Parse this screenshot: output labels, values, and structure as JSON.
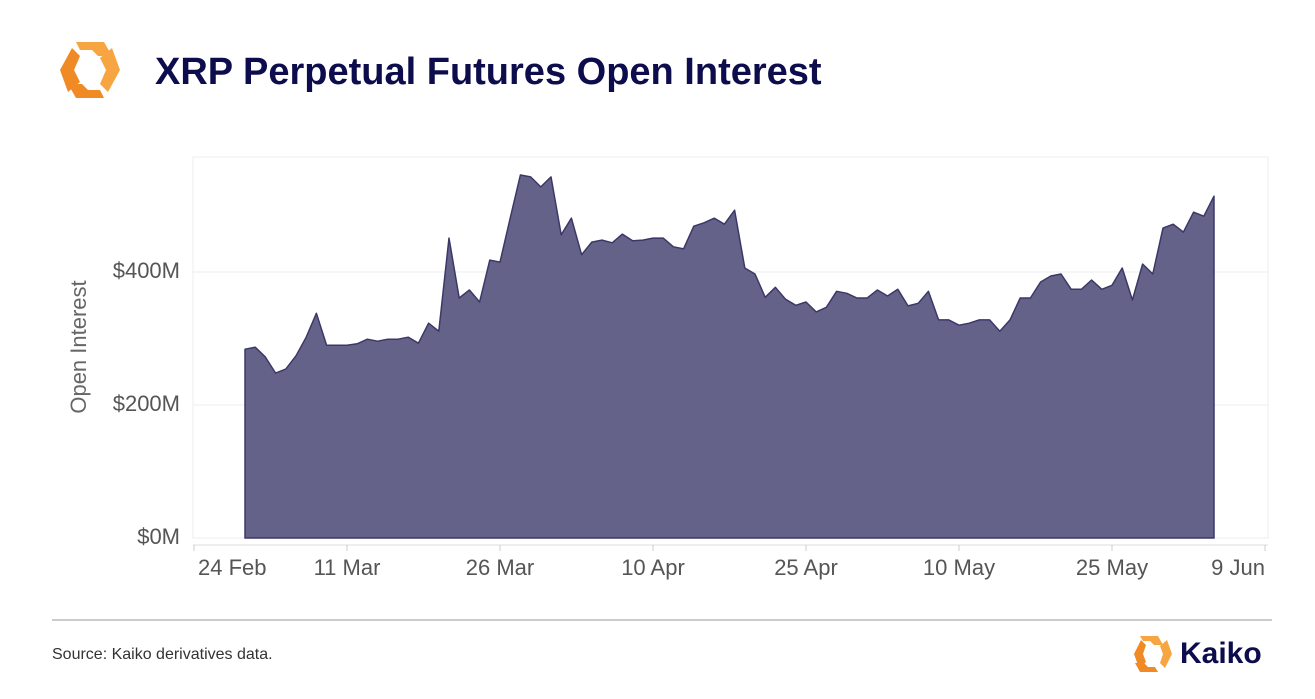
{
  "chart_data": {
    "type": "area",
    "title": "XRP Perpetual Futures Open Interest",
    "y_label": "Open Interest",
    "source": "Source: Kaiko derivatives data.",
    "brand": "Kaiko",
    "color": "#656289",
    "line_color": "#3b3868",
    "grid": true,
    "categories": [
      "24 Feb",
      null,
      null,
      null,
      null,
      null,
      null,
      null,
      null,
      null,
      null,
      null,
      null,
      null,
      null,
      "11 Mar",
      null,
      null,
      null,
      null,
      null,
      null,
      null,
      null,
      null,
      null,
      null,
      null,
      null,
      null,
      "26 Mar",
      null,
      null,
      null,
      null,
      null,
      null,
      null,
      null,
      null,
      null,
      null,
      null,
      null,
      null,
      "10 Apr",
      null,
      null,
      null,
      null,
      null,
      null,
      null,
      null,
      null,
      null,
      null,
      null,
      null,
      null,
      "25 Apr",
      null,
      null,
      null,
      null,
      null,
      null,
      null,
      null,
      null,
      null,
      null,
      null,
      null,
      null,
      "10 May",
      null,
      null,
      null,
      null,
      null,
      null,
      null,
      null,
      null,
      null,
      null,
      null,
      null,
      null,
      "25 May",
      null,
      null,
      null,
      null,
      null,
      null,
      null,
      null,
      null,
      null,
      null,
      null,
      null,
      null,
      "9 Jun"
    ],
    "values": [
      null,
      null,
      null,
      null,
      null,
      284,
      287,
      272,
      248,
      254,
      274,
      302,
      338,
      290,
      290,
      290,
      292,
      299,
      296,
      299,
      299,
      302,
      293,
      323,
      311,
      451,
      361,
      373,
      355,
      418,
      415,
      481,
      546,
      543,
      528,
      543,
      456,
      481,
      426,
      445,
      448,
      444,
      457,
      447,
      448,
      451,
      451,
      438,
      435,
      469,
      474,
      481,
      472,
      493,
      406,
      397,
      362,
      377,
      359,
      350,
      355,
      340,
      347,
      371,
      368,
      361,
      361,
      373,
      364,
      374,
      349,
      353,
      371,
      328,
      328,
      320,
      323,
      328,
      328,
      311,
      328,
      361,
      361,
      385,
      394,
      397,
      374,
      374,
      388,
      374,
      380,
      406,
      358,
      412,
      397,
      466,
      472,
      460,
      490,
      484,
      514,
      null,
      null,
      null,
      null,
      null
    ],
    "ylim": [
      0,
      573
    ],
    "yticks": [
      {
        "value": 0,
        "label": "$0M"
      },
      {
        "value": 200,
        "label": "$200M"
      },
      {
        "value": 400,
        "label": "$400M"
      }
    ]
  }
}
